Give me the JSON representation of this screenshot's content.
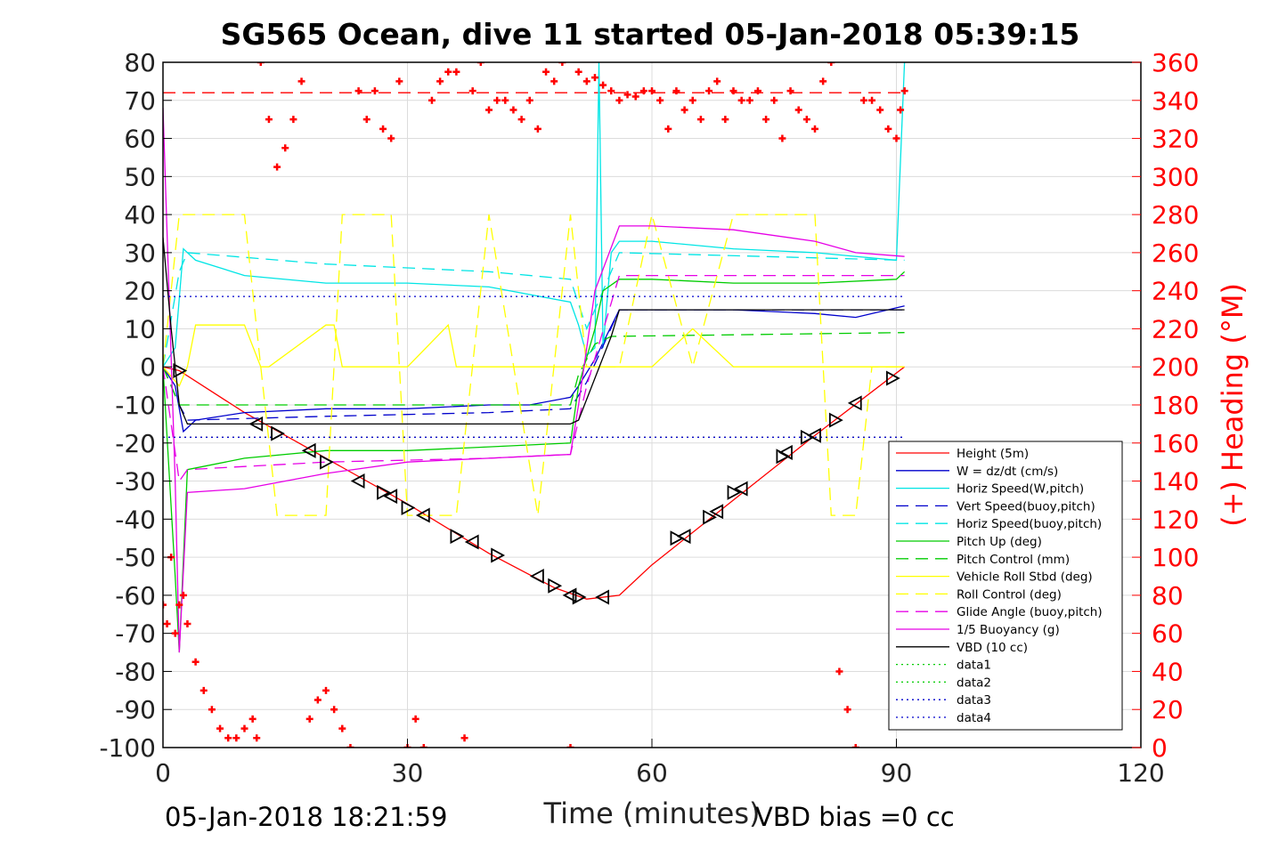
{
  "chart_data": {
    "type": "line",
    "title": "SG565 Ocean, dive 11 started 05-Jan-2018 05:39:15",
    "xlabel": "Time (minutes)",
    "ylabel_right": "(+) Heading (°M)",
    "xlim": [
      0,
      120
    ],
    "ylim": [
      -100,
      80
    ],
    "ylim_right": [
      0,
      360
    ],
    "x_ticks": [
      "0",
      "30",
      "60",
      "90",
      "120"
    ],
    "y_ticks": [
      "80",
      "70",
      "60",
      "50",
      "40",
      "30",
      "20",
      "10",
      "0",
      "-10",
      "-20",
      "-30",
      "-40",
      "-50",
      "-60",
      "-70",
      "-80",
      "-90",
      "-100"
    ],
    "y_ticks_right": [
      "360",
      "340",
      "320",
      "300",
      "280",
      "260",
      "240",
      "220",
      "200",
      "180",
      "160",
      "140",
      "120",
      "100",
      "80",
      "60",
      "40",
      "20",
      "0"
    ],
    "grid": true,
    "legend_position": "bottom-right",
    "footer_left": "05-Jan-2018 18:21:59",
    "footer_right": "VBD bias =0 cc",
    "colors": {
      "red": "#ff0000",
      "blue": "#0000cc",
      "cyan": "#00e5e5",
      "green": "#00cc00",
      "yellow": "#ffff00",
      "magenta": "#e600e6",
      "black": "#000000"
    },
    "series": [
      {
        "name": "Height (5m)",
        "color": "#ff0000",
        "style": "solid",
        "x": [
          0,
          2,
          10,
          20,
          30,
          40,
          48,
          52,
          56,
          60,
          70,
          80,
          91
        ],
        "y": [
          0,
          -1,
          -12,
          -24,
          -36,
          -49,
          -58,
          -61,
          -60,
          -52,
          -35,
          -18,
          0
        ]
      },
      {
        "name": "W = dz/dt (cm/s)",
        "color": "#0000cc",
        "style": "solid",
        "x": [
          0,
          1.5,
          2.5,
          4,
          10,
          20,
          30,
          40,
          45,
          50,
          51,
          53,
          56,
          58,
          60,
          70,
          80,
          85,
          91
        ],
        "y": [
          0,
          -5,
          -17,
          -14,
          -12,
          -11,
          -11,
          -10,
          -10,
          -8,
          -5,
          2,
          15,
          15,
          15,
          15,
          14,
          13,
          16
        ]
      },
      {
        "name": "Horiz Speed(W,pitch)",
        "color": "#00e5e5",
        "style": "solid",
        "x": [
          0,
          1.5,
          2.5,
          4,
          10,
          20,
          30,
          40,
          50,
          51,
          52,
          53,
          53.5,
          54,
          55,
          56,
          60,
          70,
          80,
          90,
          91
        ],
        "y": [
          0,
          5,
          31,
          28,
          24,
          22,
          22,
          21,
          17,
          11,
          3,
          5,
          80,
          5,
          30,
          33,
          33,
          31,
          30,
          28,
          80
        ]
      },
      {
        "name": "Vert Speed(buoy,pitch)",
        "color": "#0000cc",
        "style": "dash",
        "x": [
          0,
          2,
          3,
          20,
          40,
          50,
          52,
          56,
          91
        ],
        "y": [
          0,
          -10,
          -14,
          -13,
          -12,
          -11,
          -4,
          15,
          15
        ]
      },
      {
        "name": "Horiz Speed(buoy,pitch)",
        "color": "#00e5e5",
        "style": "dash",
        "x": [
          0,
          2,
          3,
          20,
          40,
          50,
          52,
          56,
          91
        ],
        "y": [
          0,
          25,
          30,
          27,
          25,
          23,
          10,
          30,
          28
        ]
      },
      {
        "name": "Pitch Up (deg)",
        "color": "#00cc00",
        "style": "solid",
        "x": [
          0,
          1.5,
          2,
          3,
          10,
          20,
          30,
          40,
          50,
          51,
          53,
          54,
          56,
          60,
          70,
          80,
          90,
          91
        ],
        "y": [
          0,
          -55,
          -75,
          -27,
          -24,
          -22,
          -22,
          -21,
          -20,
          -5,
          10,
          20,
          23,
          23,
          22,
          22,
          23,
          25
        ]
      },
      {
        "name": "Pitch Control (mm)",
        "color": "#00cc00",
        "style": "dash",
        "x": [
          0,
          2,
          3,
          50,
          51,
          53,
          55,
          91
        ],
        "y": [
          0,
          -10,
          -10,
          -10,
          -2,
          6,
          8,
          9
        ]
      },
      {
        "name": "Vehicle Roll Stbd (deg)",
        "color": "#ffff00",
        "style": "solid",
        "x": [
          0,
          2,
          3,
          4,
          10,
          12,
          13,
          20,
          21,
          22,
          30,
          35,
          36,
          40,
          50,
          55,
          60,
          65,
          70,
          80,
          90,
          91
        ],
        "y": [
          0,
          -5,
          0,
          11,
          11,
          0,
          0,
          11,
          11,
          0,
          0,
          11,
          0,
          0,
          0,
          0,
          0,
          10,
          0,
          0,
          0,
          0
        ]
      },
      {
        "name": "Roll Control (deg)",
        "color": "#ffff00",
        "style": "dash",
        "x": [
          0,
          2,
          3,
          10,
          12,
          14,
          20,
          22,
          28,
          30,
          36,
          40,
          46,
          50,
          52,
          56,
          60,
          65,
          70,
          80,
          82,
          85,
          87,
          91
        ],
        "y": [
          0,
          40,
          40,
          40,
          0,
          -39,
          -39,
          40,
          40,
          -39,
          -39,
          40,
          -39,
          40,
          0,
          0,
          40,
          0,
          40,
          40,
          -39,
          -39,
          0,
          0
        ]
      },
      {
        "name": "Glide Angle (buoy,pitch)",
        "color": "#e600e6",
        "style": "dash",
        "x": [
          0,
          2,
          3,
          20,
          40,
          50,
          52,
          56,
          91
        ],
        "y": [
          0,
          -30,
          -27,
          -25,
          -24,
          -23,
          -5,
          24,
          24
        ]
      },
      {
        "name": "1/5 Buoyancy (g)",
        "color": "#e600e6",
        "style": "solid",
        "x": [
          0,
          1.5,
          2,
          3,
          10,
          20,
          30,
          40,
          50,
          51,
          53,
          56,
          60,
          70,
          80,
          85,
          91
        ],
        "y": [
          68,
          -30,
          -75,
          -33,
          -32,
          -28,
          -25,
          -24,
          -23,
          -10,
          20,
          37,
          37,
          36,
          33,
          30,
          29
        ]
      },
      {
        "name": "VBD (10 cc)",
        "color": "#000000",
        "style": "solid",
        "x": [
          0,
          1,
          2,
          3,
          20,
          40,
          50,
          51,
          55,
          56,
          60,
          80,
          91
        ],
        "y": [
          34,
          10,
          -10,
          -15,
          -15,
          -15,
          -15,
          -14,
          8,
          15,
          15,
          15,
          15
        ]
      },
      {
        "name": "data1",
        "color": "#00cc00",
        "style": "dot",
        "x": [],
        "y": []
      },
      {
        "name": "data2",
        "color": "#00cc00",
        "style": "dot",
        "x": [],
        "y": []
      },
      {
        "name": "data3",
        "color": "#0000cc",
        "style": "dot",
        "x": [
          0,
          91
        ],
        "y": [
          18.5,
          18.5
        ]
      },
      {
        "name": "data4",
        "color": "#0000cc",
        "style": "dot",
        "x": [
          0,
          91
        ],
        "y": [
          -18.5,
          -18.5
        ]
      }
    ],
    "reference_lines": [
      {
        "color": "#ff0000",
        "style": "dash",
        "x": [
          0,
          91
        ],
        "y": [
          72,
          72
        ]
      },
      {
        "color": "#000000",
        "style": "dot",
        "x": [
          0,
          91
        ],
        "y": [
          -18.5,
          -18.5
        ]
      }
    ],
    "heading": {
      "color": "#ff0000",
      "marker": "plus",
      "axis": "right",
      "x": [
        0,
        0.5,
        1,
        1.5,
        2,
        2.5,
        3,
        4,
        5,
        6,
        7,
        8,
        9,
        10,
        11,
        11.5,
        12,
        13,
        14,
        15,
        16,
        17,
        18,
        19,
        20,
        21,
        22,
        23,
        24,
        25,
        26,
        27,
        28,
        29,
        30,
        31,
        32,
        33,
        34,
        35,
        36,
        37,
        38,
        39,
        40,
        41,
        42,
        43,
        44,
        45,
        46,
        47,
        48,
        49,
        50,
        51,
        52,
        53,
        54,
        55,
        56,
        57,
        58,
        59,
        60,
        61,
        62,
        63,
        64,
        65,
        66,
        67,
        68,
        69,
        70,
        71,
        72,
        73,
        74,
        75,
        76,
        77,
        78,
        79,
        80,
        81,
        82,
        83,
        84,
        85,
        86,
        87,
        88,
        89,
        90,
        90.5,
        91
      ],
      "y": [
        75,
        65,
        100,
        60,
        75,
        80,
        65,
        45,
        30,
        20,
        10,
        5,
        5,
        10,
        15,
        5,
        360,
        330,
        305,
        315,
        330,
        350,
        15,
        25,
        30,
        20,
        10,
        0,
        345,
        330,
        345,
        325,
        320,
        350,
        0,
        15,
        0,
        340,
        350,
        355,
        355,
        5,
        345,
        360,
        335,
        340,
        340,
        335,
        330,
        340,
        325,
        355,
        350,
        360,
        0,
        355,
        350,
        352,
        348,
        345,
        340,
        343,
        342,
        345,
        345,
        340,
        325,
        345,
        335,
        340,
        330,
        345,
        350,
        330,
        345,
        340,
        340,
        345,
        330,
        340,
        320,
        345,
        335,
        330,
        325,
        350,
        360,
        40,
        20,
        0,
        340,
        340,
        335,
        325,
        320,
        335,
        345
      ]
    },
    "markers": {
      "color": "#000000",
      "marker": "triangle",
      "x": [
        2,
        11.5,
        14,
        18,
        20,
        24,
        27,
        28,
        30,
        32,
        36,
        38,
        41,
        46,
        48,
        50,
        51,
        54,
        63,
        64,
        67,
        68,
        70,
        71,
        76,
        76.5,
        79,
        80,
        82.5,
        85,
        89.5
      ],
      "y": [
        -1,
        -15,
        -17.5,
        -22,
        -25,
        -30,
        -33,
        -34,
        -37,
        -39,
        -44.5,
        -46,
        -49.5,
        -55,
        -57.5,
        -60,
        -60.5,
        -60.5,
        -45,
        -44.5,
        -39.5,
        -38,
        -33,
        -32,
        -23.5,
        -22.5,
        -18.5,
        -18,
        -14,
        -9.5,
        -3
      ]
    }
  }
}
